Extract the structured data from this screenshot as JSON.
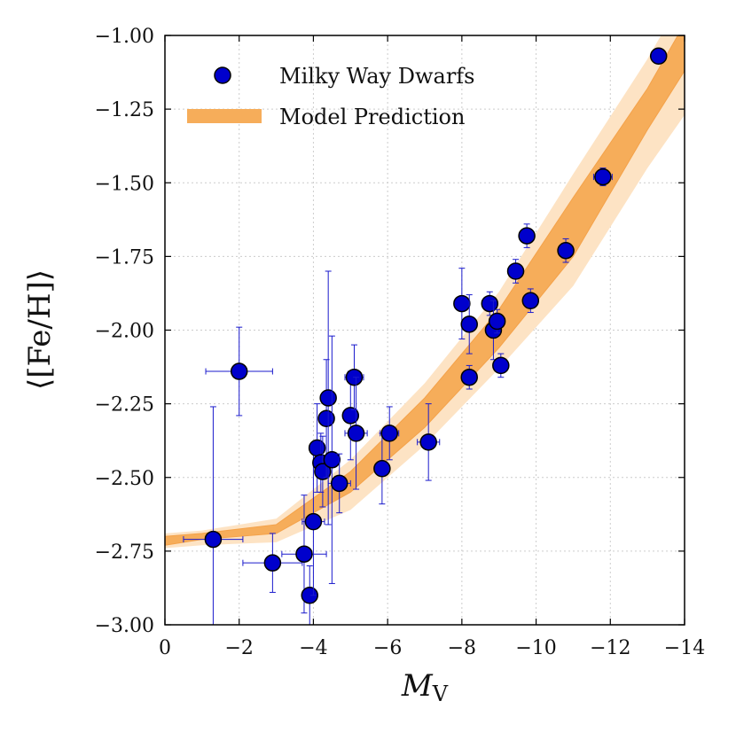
{
  "chart_data": {
    "type": "scatter",
    "xlabel": "M_V",
    "xlabel_main": "M",
    "xlabel_sub": "V",
    "ylabel": "⟨[Fe/H]⟩",
    "xlim": [
      0,
      -14
    ],
    "ylim": [
      -3.0,
      -1.0
    ],
    "grid": true,
    "legend_position": "top-left",
    "x_ticks": [
      0,
      -2,
      -4,
      -6,
      -8,
      -10,
      -12,
      -14
    ],
    "x_tick_labels": [
      "0",
      "−2",
      "−4",
      "−6",
      "−8",
      "−10",
      "−12",
      "−14"
    ],
    "y_ticks": [
      -1.0,
      -1.25,
      -1.5,
      -1.75,
      -2.0,
      -2.25,
      -2.5,
      -2.75,
      -3.0
    ],
    "y_tick_labels": [
      "−1.00",
      "−1.25",
      "−1.50",
      "−1.75",
      "−2.00",
      "−2.25",
      "−2.50",
      "−2.75",
      "−3.00"
    ],
    "legend": [
      {
        "label": "Milky Way Dwarfs",
        "kind": "marker"
      },
      {
        "label": "Model Prediction",
        "kind": "band"
      }
    ],
    "colors": {
      "point_fill": "#0000cc",
      "point_edge": "#000000",
      "errorbar": "#1a1acc",
      "band_inner": "#f6ad5a",
      "band_outer": "#fde3c4",
      "band_edge": "#f4a24a",
      "grid": "#cccccc"
    },
    "series": [
      {
        "name": "Milky Way Dwarfs",
        "points": [
          {
            "x": -1.3,
            "y": -2.71,
            "xerr": 0.8,
            "yerr": 0.45
          },
          {
            "x": -2.0,
            "y": -2.14,
            "xerr": 0.9,
            "yerr": 0.15
          },
          {
            "x": -2.9,
            "y": -2.79,
            "xerr": 0.8,
            "yerr": 0.1
          },
          {
            "x": -3.75,
            "y": -2.76,
            "xerr": 0.6,
            "yerr": 0.2
          },
          {
            "x": -3.9,
            "y": -2.9,
            "xerr": 0.15,
            "yerr": 0.1
          },
          {
            "x": -4.0,
            "y": -2.65,
            "xerr": 0.3,
            "yerr": 0.25
          },
          {
            "x": -4.1,
            "y": -2.4,
            "xerr": 0.2,
            "yerr": 0.15
          },
          {
            "x": -4.2,
            "y": -2.45,
            "xerr": 0.2,
            "yerr": 0.1
          },
          {
            "x": -4.25,
            "y": -2.48,
            "xerr": 0.15,
            "yerr": 0.12
          },
          {
            "x": -4.35,
            "y": -2.3,
            "xerr": 0.15,
            "yerr": 0.2
          },
          {
            "x": -4.4,
            "y": -2.23,
            "xerr": 0.2,
            "yerr": 0.43
          },
          {
            "x": -4.5,
            "y": -2.44,
            "xerr": 0.2,
            "yerr": 0.42
          },
          {
            "x": -4.7,
            "y": -2.52,
            "xerr": 0.3,
            "yerr": 0.1
          },
          {
            "x": -5.0,
            "y": -2.29,
            "xerr": 0.2,
            "yerr": 0.15
          },
          {
            "x": -5.1,
            "y": -2.16,
            "xerr": 0.25,
            "yerr": 0.11
          },
          {
            "x": -5.15,
            "y": -2.35,
            "xerr": 0.3,
            "yerr": 0.19
          },
          {
            "x": -5.85,
            "y": -2.47,
            "xerr": 0.2,
            "yerr": 0.12
          },
          {
            "x": -6.05,
            "y": -2.35,
            "xerr": 0.25,
            "yerr": 0.09
          },
          {
            "x": -7.1,
            "y": -2.38,
            "xerr": 0.3,
            "yerr": 0.13
          },
          {
            "x": -8.0,
            "y": -1.91,
            "xerr": 0.2,
            "yerr": 0.12
          },
          {
            "x": -8.2,
            "y": -1.98,
            "xerr": 0.2,
            "yerr": 0.1
          },
          {
            "x": -8.2,
            "y": -2.16,
            "xerr": 0.2,
            "yerr": 0.04
          },
          {
            "x": -8.75,
            "y": -1.91,
            "xerr": 0.2,
            "yerr": 0.04
          },
          {
            "x": -8.85,
            "y": -2.0,
            "xerr": 0.2,
            "yerr": 0.1
          },
          {
            "x": -8.95,
            "y": -1.97,
            "xerr": 0.2,
            "yerr": 0.04
          },
          {
            "x": -9.05,
            "y": -2.12,
            "xerr": 0.2,
            "yerr": 0.04
          },
          {
            "x": -9.45,
            "y": -1.8,
            "xerr": 0.2,
            "yerr": 0.04
          },
          {
            "x": -9.75,
            "y": -1.68,
            "xerr": 0.15,
            "yerr": 0.04
          },
          {
            "x": -9.85,
            "y": -1.9,
            "xerr": 0.2,
            "yerr": 0.04
          },
          {
            "x": -10.8,
            "y": -1.73,
            "xerr": 0.2,
            "yerr": 0.04
          },
          {
            "x": -11.8,
            "y": -1.48,
            "xerr": 0.25,
            "yerr": 0.03
          },
          {
            "x": -13.3,
            "y": -1.07,
            "xerr": 0.1,
            "yerr": 0.02
          }
        ]
      },
      {
        "name": "Model Prediction",
        "band_x": [
          0,
          -1,
          -3,
          -5,
          -7,
          -9,
          -11,
          -13,
          -14
        ],
        "band_inner_lower": [
          -2.73,
          -2.71,
          -2.69,
          -2.55,
          -2.33,
          -2.06,
          -1.75,
          -1.32,
          -1.12
        ],
        "band_inner_upper": [
          -2.7,
          -2.69,
          -2.66,
          -2.48,
          -2.23,
          -1.93,
          -1.55,
          -1.18,
          -0.96
        ],
        "band_outer_lower": [
          -2.74,
          -2.73,
          -2.72,
          -2.61,
          -2.39,
          -2.13,
          -1.85,
          -1.45,
          -1.27
        ],
        "band_outer_upper": [
          -2.69,
          -2.68,
          -2.64,
          -2.44,
          -2.18,
          -1.87,
          -1.47,
          -1.08,
          -0.86
        ]
      }
    ]
  }
}
